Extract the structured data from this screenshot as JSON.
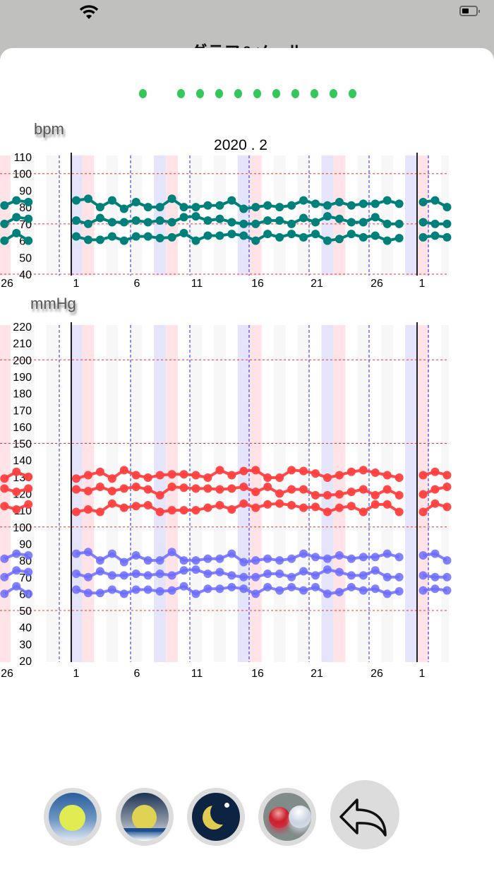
{
  "screen": {
    "title": "グラフ&メール"
  },
  "pager": {
    "page_count": 11,
    "current_page": 1,
    "color": "#34c759"
  },
  "month_label": "2020 . 2",
  "charts": {
    "pulse": {
      "unit": "bpm",
      "y_ticks": [
        "110",
        "100",
        "90",
        "80",
        "70",
        "60",
        "50",
        "40"
      ],
      "ylim": [
        40,
        110
      ],
      "reference_lines": [
        100,
        70,
        40
      ],
      "series_color": "#00807a"
    },
    "pressure": {
      "unit": "mmHg",
      "y_ticks": [
        "220",
        "210",
        "200",
        "190",
        "180",
        "170",
        "160",
        "150",
        "140",
        "130",
        "120",
        "110",
        "100",
        "90",
        "80",
        "70",
        "60",
        "50",
        "40",
        "30",
        "20"
      ],
      "ylim": [
        20,
        220
      ],
      "reference_lines": [
        200,
        150,
        100,
        50
      ],
      "high_color": "#ff4040",
      "low_color": "#6c6cff"
    },
    "x_tick_labels": [
      "26",
      "1",
      "6",
      "11",
      "16",
      "21",
      "26",
      "1"
    ]
  },
  "chart_data": [
    {
      "type": "line",
      "ylabel": "bpm",
      "ylim": [
        40,
        110
      ],
      "xlabel": "2020 . 2",
      "x_range": [
        "2020-01-26",
        "2020-03-03"
      ],
      "series": [
        {
          "segments": [
            {
              "month": "2020-01",
              "start_day": 26,
              "values": [
                81,
                84,
                83
              ]
            },
            {
              "month": "2020-02",
              "start_day": 1,
              "values": [
                84,
                85,
                80,
                84,
                79,
                83,
                80,
                80,
                85,
                80,
                80,
                81,
                81,
                84,
                79,
                80,
                81,
                80,
                81,
                84,
                82,
                81,
                83,
                81,
                82,
                82,
                84,
                82
              ]
            },
            {
              "month": "2020-03",
              "start_day": 1,
              "values": [
                83,
                84,
                80
              ]
            }
          ]
        },
        {
          "segments": [
            {
              "month": "2020-01",
              "start_day": 26,
              "values": [
                70,
                74,
                73
              ]
            },
            {
              "month": "2020-02",
              "start_day": 1,
              "values": [
                72,
                70,
                73.5,
                71,
                71,
                72,
                71,
                72,
                71,
                74,
                74.5,
                72,
                73,
                71,
                70,
                70,
                72,
                72,
                70,
                73.5,
                71,
                74.5,
                73,
                71,
                71,
                74,
                70,
                70
              ]
            },
            {
              "month": "2020-03",
              "start_day": 1,
              "values": [
                71,
                70,
                70
              ]
            }
          ]
        },
        {
          "segments": [
            {
              "month": "2020-01",
              "start_day": 26,
              "values": [
                60,
                64.5,
                60
              ]
            },
            {
              "month": "2020-02",
              "start_day": 1,
              "values": [
                62.5,
                60.5,
                60.5,
                62.5,
                60,
                62.5,
                62.5,
                61.5,
                62,
                64.5,
                60,
                63,
                63,
                64,
                63,
                60,
                64,
                62,
                64,
                62,
                64,
                60,
                61,
                64,
                62,
                63,
                60,
                61.5
              ]
            },
            {
              "month": "2020-03",
              "start_day": 1,
              "values": [
                62,
                63,
                62
              ]
            }
          ]
        }
      ]
    },
    {
      "type": "line",
      "ylabel": "mmHg",
      "ylim": [
        20,
        220
      ],
      "x_range": [
        "2020-01-26",
        "2020-03-03"
      ],
      "series": [
        {
          "kind": "high",
          "segments": [
            {
              "month": "2020-01",
              "start_day": 26,
              "values": [
                129,
                133,
                130
              ]
            },
            {
              "month": "2020-02",
              "start_day": 1,
              "values": [
                129,
                131,
                133,
                129,
                134,
                131,
                129.5,
                131,
                131.5,
                131.5,
                131,
                129.5,
                134,
                131,
                133.5,
                134,
                129.5,
                129.5,
                134,
                133.5,
                132,
                129.5,
                131,
                133,
                134,
                132.5,
                131,
                129.5
              ]
            },
            {
              "month": "2020-03",
              "start_day": 1,
              "values": [
                131,
                133,
                131
              ]
            }
          ]
        },
        {
          "kind": "high",
          "segments": [
            {
              "month": "2020-01",
              "start_day": 26,
              "values": [
                123,
                121,
                123
              ]
            },
            {
              "month": "2020-02",
              "start_day": 1,
              "values": [
                122.5,
                121.5,
                124,
                121.5,
                123,
                124,
                122.5,
                119,
                124,
                123.5,
                123,
                123,
                122.5,
                123,
                124,
                121,
                124,
                120,
                122.5,
                122.5,
                119,
                119,
                119.5,
                121,
                122.5,
                119,
                122.5,
                119
              ]
            },
            {
              "month": "2020-03",
              "start_day": 1,
              "values": [
                119.5,
                122.5,
                124
              ]
            }
          ]
        },
        {
          "kind": "high",
          "segments": [
            {
              "month": "2020-01",
              "start_day": 26,
              "values": [
                112.5,
                110.5,
                113.5
              ]
            },
            {
              "month": "2020-02",
              "start_day": 1,
              "values": [
                109,
                110.5,
                109,
                114,
                111.5,
                112.5,
                113,
                109,
                110,
                110,
                110,
                111.5,
                113,
                110.5,
                114,
                111.5,
                113.5,
                114,
                113,
                111.5,
                112,
                109,
                111.5,
                112.5,
                109,
                113.5,
                113.5,
                109
              ]
            },
            {
              "month": "2020-03",
              "start_day": 1,
              "values": [
                109,
                114,
                112
              ]
            }
          ]
        },
        {
          "kind": "low",
          "segments": [
            {
              "month": "2020-01",
              "start_day": 26,
              "values": [
                81,
                84,
                83
              ]
            },
            {
              "month": "2020-02",
              "start_day": 1,
              "values": [
                84,
                85,
                80,
                84,
                79,
                83,
                80,
                80,
                85,
                80,
                80,
                81,
                81,
                84,
                79,
                80,
                81,
                80,
                81,
                84,
                82,
                81,
                83,
                81,
                82,
                82,
                84,
                82
              ]
            },
            {
              "month": "2020-03",
              "start_day": 1,
              "values": [
                83,
                84,
                80
              ]
            }
          ]
        },
        {
          "kind": "low",
          "segments": [
            {
              "month": "2020-01",
              "start_day": 26,
              "values": [
                70,
                74,
                73
              ]
            },
            {
              "month": "2020-02",
              "start_day": 1,
              "values": [
                72,
                70,
                73.5,
                71,
                71,
                72,
                71,
                72,
                71,
                74,
                74.5,
                72,
                73,
                71,
                70,
                70,
                72,
                72,
                70,
                73.5,
                71,
                74.5,
                73,
                71,
                71,
                74,
                70,
                70
              ]
            },
            {
              "month": "2020-03",
              "start_day": 1,
              "values": [
                71,
                70,
                70
              ]
            }
          ]
        },
        {
          "kind": "low",
          "segments": [
            {
              "month": "2020-01",
              "start_day": 26,
              "values": [
                60,
                64.5,
                60
              ]
            },
            {
              "month": "2020-02",
              "start_day": 1,
              "values": [
                62.5,
                60.5,
                60.5,
                62.5,
                60,
                62.5,
                62.5,
                61.5,
                62,
                64.5,
                60,
                63,
                63,
                64,
                63,
                60,
                64,
                62,
                64,
                62,
                64,
                60,
                61,
                64,
                62,
                63,
                60,
                61.5
              ]
            },
            {
              "month": "2020-03",
              "start_day": 1,
              "values": [
                62,
                63,
                62
              ]
            }
          ]
        }
      ]
    }
  ],
  "toolbar": {
    "buttons": [
      {
        "icon": "morning-sun-icon"
      },
      {
        "icon": "evening-sunset-icon"
      },
      {
        "icon": "night-moon-icon"
      },
      {
        "icon": "medicine-pills-icon"
      },
      {
        "icon": "back-arrow-icon"
      }
    ]
  }
}
